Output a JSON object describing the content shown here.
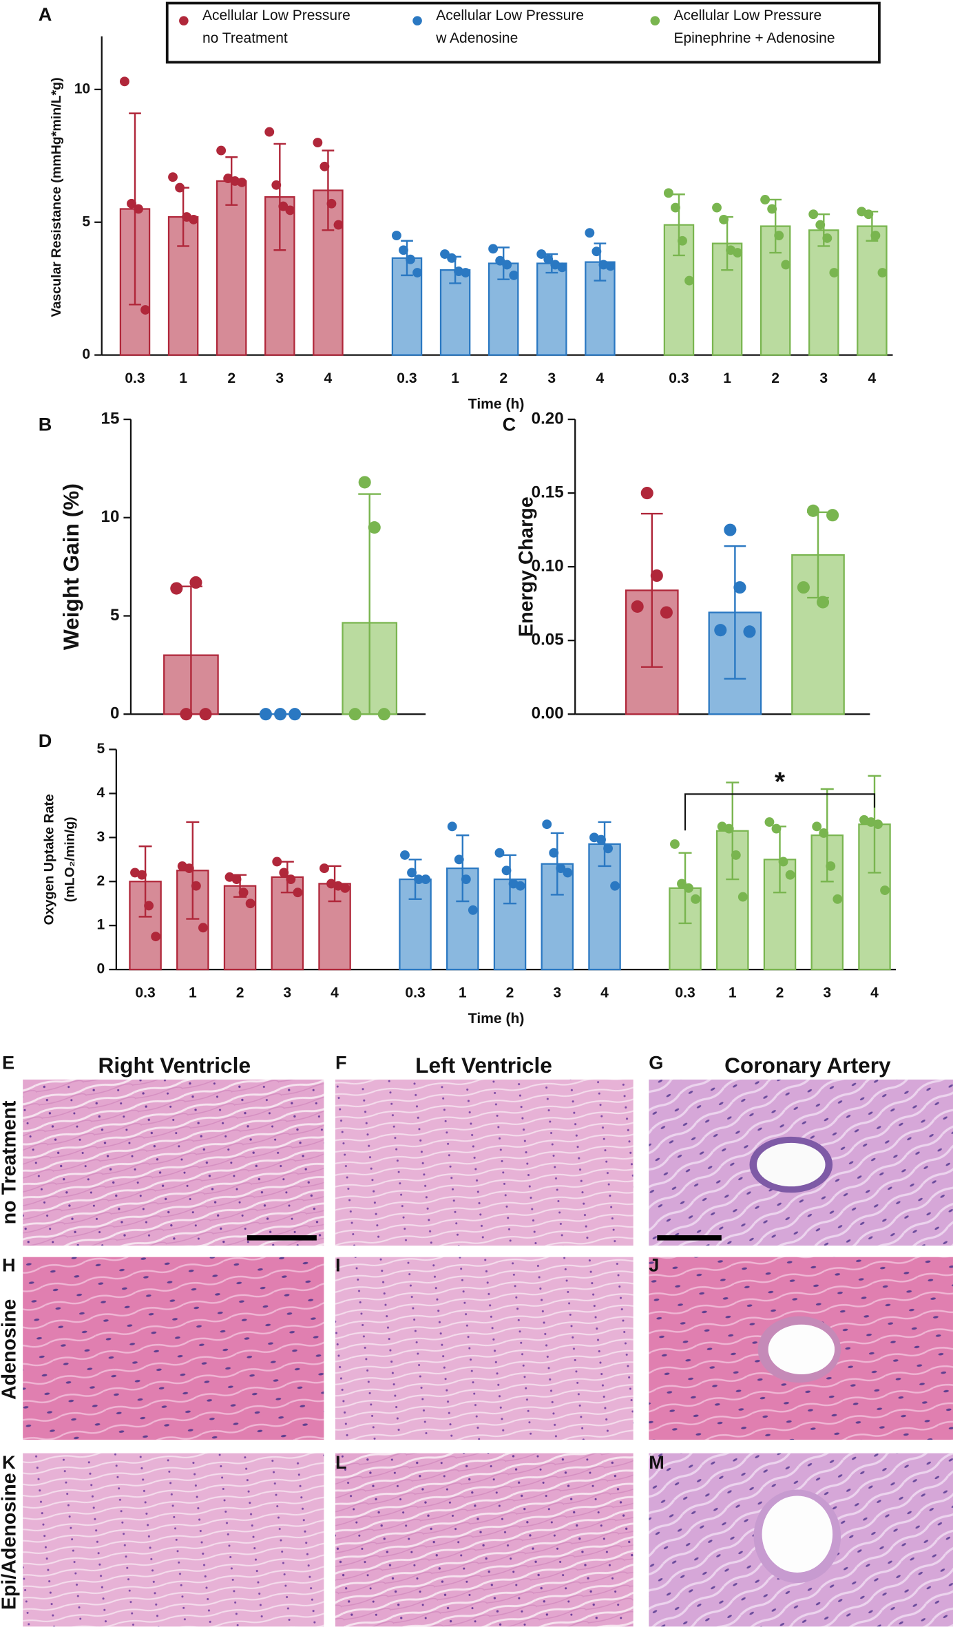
{
  "chart_data": [
    {
      "type": "bar",
      "panel": "A",
      "y_label": "Vascular Resistance (mmHg*min/L*g)",
      "x_label": "Time (h)",
      "categories": [
        "0.3",
        "1",
        "2",
        "3",
        "4"
      ],
      "ylim": [
        0,
        12
      ],
      "yticks": [
        0,
        5,
        10
      ],
      "series": [
        {
          "name": "Acellular Low Pressure\nno Treatment",
          "color": "#b0273a",
          "fill": "#d68b97",
          "values": [
            5.5,
            5.2,
            6.55,
            5.95,
            6.2
          ],
          "errors": [
            3.6,
            1.1,
            0.9,
            2.0,
            1.5
          ],
          "points": [
            [
              10.3,
              5.7,
              5.5,
              1.7
            ],
            [
              6.7,
              6.3,
              5.2,
              5.1
            ],
            [
              7.7,
              6.65,
              6.55,
              6.5
            ],
            [
              8.4,
              6.4,
              5.6,
              5.45
            ],
            [
              8.0,
              7.1,
              5.7,
              4.9
            ]
          ]
        },
        {
          "name": "Acellular Low Pressure\nw Adenosine",
          "color": "#2a78c2",
          "fill": "#8ab8df",
          "values": [
            3.65,
            3.2,
            3.45,
            3.45,
            3.5
          ],
          "errors": [
            0.65,
            0.5,
            0.6,
            0.35,
            0.7
          ],
          "points": [
            [
              4.5,
              3.95,
              3.6,
              3.1
            ],
            [
              3.8,
              3.65,
              3.15,
              3.1
            ],
            [
              4.0,
              3.55,
              3.4,
              3.0
            ],
            [
              3.8,
              3.6,
              3.4,
              3.3
            ],
            [
              4.6,
              3.9,
              3.4,
              3.35
            ]
          ]
        },
        {
          "name": "Acellular Low Pressure\nEpinephrine + Adenosine",
          "color": "#79b54f",
          "fill": "#badb9f",
          "values": [
            4.9,
            4.2,
            4.85,
            4.7,
            4.85
          ],
          "errors": [
            1.15,
            1.0,
            1.0,
            0.6,
            0.55
          ],
          "points": [
            [
              6.1,
              5.55,
              4.3,
              2.8
            ],
            [
              5.55,
              5.1,
              3.95,
              3.85
            ],
            [
              5.85,
              5.5,
              4.5,
              3.4
            ],
            [
              5.3,
              4.9,
              4.4,
              3.1
            ],
            [
              5.4,
              5.3,
              4.5,
              3.1
            ]
          ]
        }
      ]
    },
    {
      "type": "bar",
      "panel": "B",
      "y_label": "Weight Gain (%)",
      "ylim": [
        0,
        15
      ],
      "yticks": [
        0,
        5,
        10,
        15
      ],
      "series": [
        {
          "color": "#b0273a",
          "fill": "#d68b97",
          "values": [
            3.0
          ],
          "errors": [
            3.5
          ],
          "points": [
            [
              6.4,
              0,
              6.7,
              0
            ]
          ]
        },
        {
          "color": "#2a78c2",
          "fill": "#8ab8df",
          "values": [
            0
          ],
          "errors": [
            0
          ],
          "points": [
            [
              0,
              0,
              0
            ]
          ]
        },
        {
          "color": "#79b54f",
          "fill": "#badb9f",
          "values": [
            4.65
          ],
          "errors": [
            6.55
          ],
          "points": [
            [
              0,
              11.8,
              9.5,
              0
            ]
          ]
        }
      ]
    },
    {
      "type": "bar",
      "panel": "C",
      "y_label": "Energy Charge",
      "ylim": [
        0,
        0.2
      ],
      "yticks": [
        {
          "value": 0,
          "label": "0.00"
        },
        0.05,
        {
          "value": 0.1,
          "label": "0.10"
        },
        0.15,
        {
          "value": 0.2,
          "label": "0.20"
        }
      ],
      "series": [
        {
          "color": "#b0273a",
          "fill": "#d68b97",
          "values": [
            0.084
          ],
          "errors": [
            0.052
          ],
          "points": [
            [
              0.073,
              0.15,
              0.094,
              0.069
            ]
          ]
        },
        {
          "color": "#2a78c2",
          "fill": "#8ab8df",
          "values": [
            0.069
          ],
          "errors": [
            0.045
          ],
          "points": [
            [
              0.057,
              0.125,
              0.086,
              0.056
            ]
          ]
        },
        {
          "color": "#79b54f",
          "fill": "#badb9f",
          "values": [
            0.108
          ],
          "errors": [
            0.029
          ],
          "points": [
            [
              0.086,
              0.138,
              0.076,
              0.135
            ]
          ]
        }
      ]
    },
    {
      "type": "bar",
      "panel": "D",
      "y_label": [
        "Oxygen Uptake Rate",
        "(mLO₂/min/g)"
      ],
      "x_label": "Time (h)",
      "annotation": "*",
      "categories": [
        "0.3",
        "1",
        "2",
        "3",
        "4"
      ],
      "ylim": [
        0,
        5
      ],
      "yticks": [
        0,
        1,
        2,
        3,
        4,
        5
      ],
      "series": [
        {
          "color": "#b0273a",
          "fill": "#d68b97",
          "values": [
            2.0,
            2.25,
            1.9,
            2.1,
            1.95
          ],
          "errors": [
            0.8,
            1.1,
            0.25,
            0.35,
            0.4
          ],
          "points": [
            [
              2.2,
              2.15,
              1.45,
              0.75
            ],
            [
              2.35,
              2.3,
              1.9,
              0.95
            ],
            [
              2.1,
              2.05,
              1.75,
              1.5
            ],
            [
              2.45,
              2.2,
              2.05,
              1.75
            ],
            [
              2.3,
              1.95,
              1.9,
              1.85
            ]
          ]
        },
        {
          "color": "#2a78c2",
          "fill": "#8ab8df",
          "values": [
            2.05,
            2.3,
            2.05,
            2.4,
            2.85
          ],
          "errors": [
            0.45,
            0.75,
            0.55,
            0.7,
            0.5
          ],
          "points": [
            [
              2.6,
              2.2,
              2.05,
              2.05
            ],
            [
              3.25,
              2.5,
              2.05,
              1.35
            ],
            [
              2.65,
              2.25,
              1.95,
              1.9
            ],
            [
              3.3,
              2.65,
              2.3,
              2.2
            ],
            [
              3.0,
              2.95,
              2.75,
              1.9
            ]
          ]
        },
        {
          "color": "#79b54f",
          "fill": "#badb9f",
          "values": [
            1.85,
            3.15,
            2.5,
            3.05,
            3.3
          ],
          "errors": [
            0.8,
            1.1,
            0.75,
            1.05,
            1.1
          ],
          "points": [
            [
              2.85,
              1.95,
              1.85,
              1.6
            ],
            [
              3.25,
              3.2,
              2.6,
              1.65
            ],
            [
              3.35,
              3.2,
              2.45,
              2.15
            ],
            [
              3.25,
              3.1,
              2.35,
              1.6
            ],
            [
              3.4,
              3.35,
              3.3,
              1.8
            ]
          ]
        }
      ]
    }
  ],
  "histology": {
    "columns": [
      "Right Ventricle",
      "Left Ventricle",
      "Coronary Artery"
    ],
    "rows": [
      "no Treatment",
      "Adenosine",
      "Epi/Adenosine"
    ],
    "panels": [
      "E",
      "F",
      "G",
      "H",
      "I",
      "J",
      "K",
      "L",
      "M"
    ]
  }
}
